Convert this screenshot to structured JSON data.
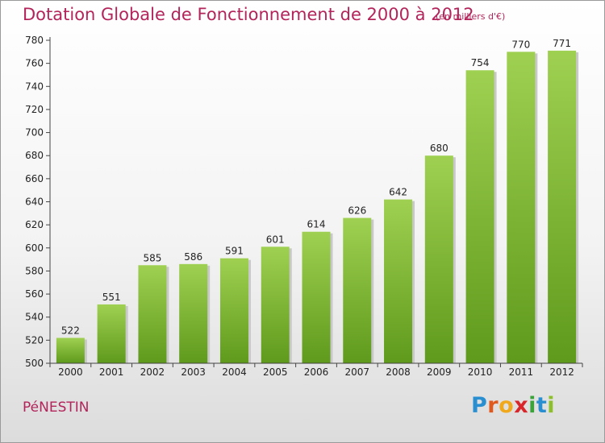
{
  "header": {
    "title": "Dotation Globale de Fonctionnement de 2000 à 2012",
    "unit": "(en milliers d'€)"
  },
  "footer": {
    "commune": "PéNESTIN",
    "logo_text": "Proxiti"
  },
  "colors": {
    "title": "#b3245a",
    "bar_top": "#9fd051",
    "bar_bottom": "#5f9a1c"
  },
  "chart_data": {
    "type": "bar",
    "title": "Dotation Globale de Fonctionnement de 2000 à 2012",
    "unit_label": "(en milliers d'€)",
    "categories": [
      "2000",
      "2001",
      "2002",
      "2003",
      "2004",
      "2005",
      "2006",
      "2007",
      "2008",
      "2009",
      "2010",
      "2011",
      "2012"
    ],
    "values": [
      522,
      551,
      585,
      586,
      591,
      601,
      614,
      626,
      642,
      680,
      754,
      770,
      771
    ],
    "ylim": [
      500,
      780
    ],
    "yticks": [
      500,
      520,
      540,
      560,
      580,
      600,
      620,
      640,
      660,
      680,
      700,
      720,
      740,
      760,
      780
    ],
    "grid": false,
    "legend": "none"
  }
}
